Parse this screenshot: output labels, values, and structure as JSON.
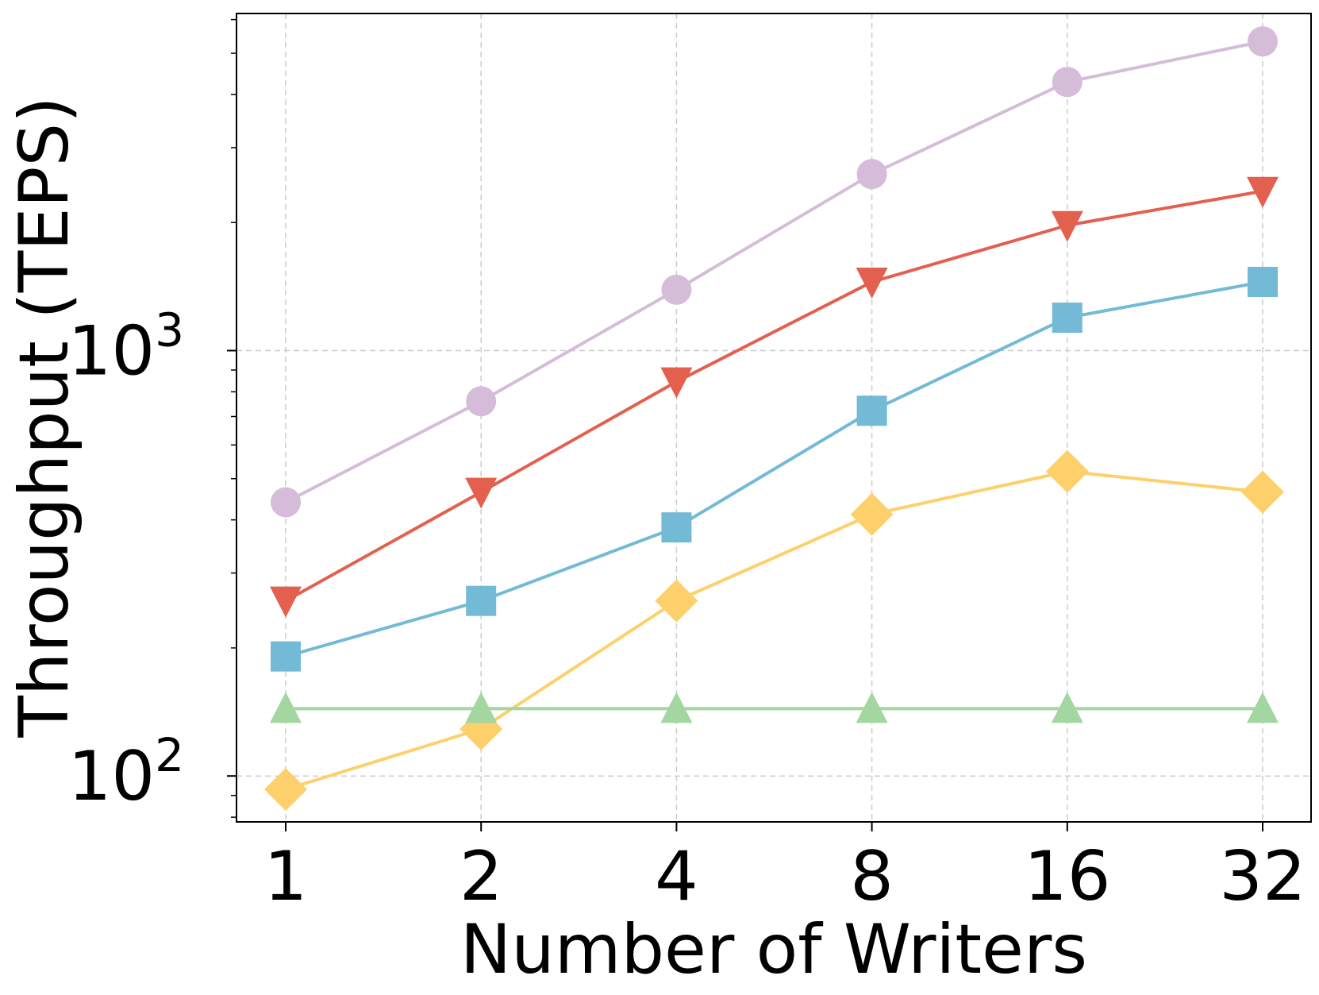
{
  "chart_data": {
    "type": "line",
    "title": "",
    "xlabel": "Number of Writers",
    "ylabel": "Throughput (TEPS)",
    "x_scale": "log2",
    "y_scale": "log10",
    "x": [
      1,
      2,
      4,
      8,
      16,
      32
    ],
    "x_tick_labels": [
      "1",
      "2",
      "4",
      "8",
      "16",
      "32"
    ],
    "y_major_ticks": [
      {
        "value": 100,
        "base": "10",
        "exp": "2"
      },
      {
        "value": 1000,
        "base": "10",
        "exp": "3"
      }
    ],
    "ylim": [
      78,
      6200
    ],
    "grid": true,
    "legend": "none",
    "series": [
      {
        "marker": "circle",
        "color": "#d5bcd9",
        "values": [
          440,
          760,
          1390,
          2600,
          4280,
          5330
        ]
      },
      {
        "marker": "triangle-down",
        "color": "#e3604f",
        "values": [
          258,
          465,
          845,
          1450,
          1970,
          2370
        ]
      },
      {
        "marker": "square",
        "color": "#72bad5",
        "values": [
          191,
          258,
          384,
          722,
          1195,
          1450
        ]
      },
      {
        "marker": "diamond",
        "color": "#fed06b",
        "values": [
          93,
          129,
          258,
          412,
          520,
          465
        ]
      },
      {
        "marker": "triangle-up",
        "color": "#a3d6a1",
        "values": [
          144,
          144,
          144,
          144,
          144,
          144
        ]
      }
    ]
  }
}
